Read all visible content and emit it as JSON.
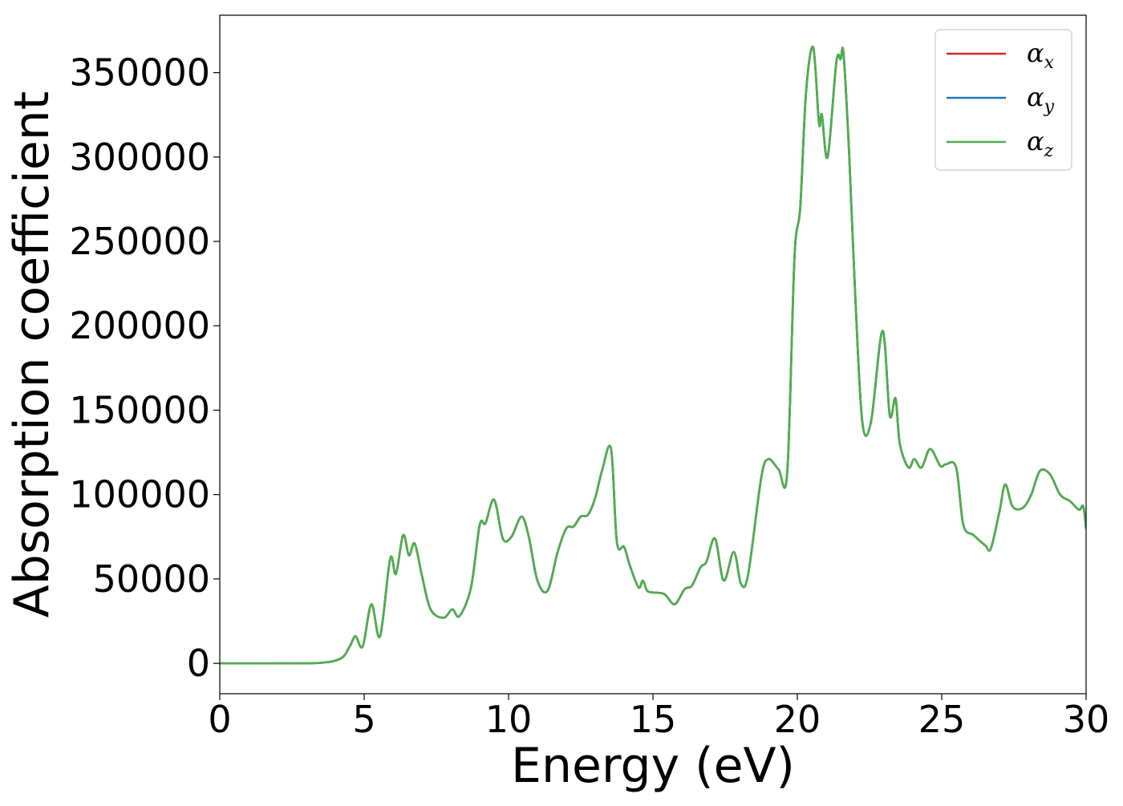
{
  "chart_data": {
    "type": "line",
    "title": "",
    "xlabel": "Energy (eV)",
    "ylabel": "Absorption coefficient",
    "xlim": [
      0,
      30
    ],
    "ylim": [
      -18000,
      384000
    ],
    "xticks": [
      0,
      5,
      10,
      15,
      20,
      25,
      30
    ],
    "yticks": [
      0,
      50000,
      100000,
      150000,
      200000,
      250000,
      300000,
      350000
    ],
    "grid": false,
    "legend_position": "top-right",
    "series": [
      {
        "name": "α_x",
        "legend_base": "α",
        "legend_sub": "x",
        "color": "#d62728",
        "x": [
          0,
          2,
          3.5,
          4.2,
          4.5,
          4.7,
          4.95,
          5.25,
          5.55,
          5.9,
          6.1,
          6.35,
          6.55,
          6.75,
          7.0,
          7.3,
          7.75,
          8.05,
          8.3,
          8.7,
          9.0,
          9.2,
          9.5,
          9.8,
          10.1,
          10.45,
          10.7,
          11.0,
          11.35,
          11.7,
          12.0,
          12.25,
          12.5,
          12.75,
          13.0,
          13.25,
          13.55,
          13.75,
          14.0,
          14.2,
          14.5,
          14.65,
          14.8,
          15.0,
          15.4,
          15.75,
          16.1,
          16.35,
          16.65,
          16.85,
          17.15,
          17.45,
          17.8,
          18.05,
          18.3,
          18.75,
          19.0,
          19.35,
          19.65,
          19.9,
          20.1,
          20.3,
          20.55,
          20.75,
          20.85,
          21.05,
          21.35,
          21.5,
          21.6,
          21.8,
          22.0,
          22.25,
          22.55,
          22.95,
          23.2,
          23.4,
          23.55,
          23.85,
          24.05,
          24.3,
          24.6,
          24.95,
          25.15,
          25.5,
          25.75,
          26.1,
          26.5,
          26.7,
          27.0,
          27.2,
          27.45,
          27.8,
          28.1,
          28.4,
          28.75,
          29.1,
          29.45,
          29.75,
          29.9,
          30.0
        ],
        "y": [
          0,
          0,
          300,
          3000,
          10000,
          16000,
          10000,
          35000,
          16000,
          62000,
          53000,
          76000,
          64000,
          71000,
          52000,
          32000,
          27000,
          32000,
          28000,
          45000,
          82000,
          83000,
          97000,
          74000,
          75000,
          87000,
          75000,
          49000,
          43000,
          66000,
          80000,
          81000,
          87000,
          88000,
          98000,
          115000,
          127000,
          72000,
          69000,
          58000,
          45000,
          49000,
          43000,
          42000,
          41000,
          35000,
          44000,
          46000,
          57000,
          60000,
          74000,
          49000,
          66000,
          47000,
          53000,
          110000,
          121000,
          115000,
          113000,
          240000,
          270000,
          338000,
          365000,
          320000,
          325000,
          300000,
          356000,
          358000,
          361000,
          300000,
          220000,
          143000,
          143000,
          197000,
          147000,
          157000,
          130000,
          116000,
          121000,
          116000,
          127000,
          117000,
          118000,
          116000,
          82000,
          76000,
          70000,
          68000,
          90000,
          106000,
          93000,
          92000,
          100000,
          114000,
          112000,
          100000,
          96000,
          91000,
          93000,
          80000
        ]
      },
      {
        "name": "α_y",
        "legend_base": "α",
        "legend_sub": "y",
        "color": "#1f77b4",
        "x": [
          0,
          2,
          3.5,
          4.2,
          4.5,
          4.7,
          4.95,
          5.25,
          5.55,
          5.9,
          6.1,
          6.35,
          6.55,
          6.75,
          7.0,
          7.3,
          7.75,
          8.05,
          8.3,
          8.7,
          9.0,
          9.2,
          9.5,
          9.8,
          10.1,
          10.45,
          10.7,
          11.0,
          11.35,
          11.7,
          12.0,
          12.25,
          12.5,
          12.75,
          13.0,
          13.25,
          13.55,
          13.75,
          14.0,
          14.2,
          14.5,
          14.65,
          14.8,
          15.0,
          15.4,
          15.75,
          16.1,
          16.35,
          16.65,
          16.85,
          17.15,
          17.45,
          17.8,
          18.05,
          18.3,
          18.75,
          19.0,
          19.35,
          19.65,
          19.9,
          20.1,
          20.3,
          20.55,
          20.75,
          20.85,
          21.05,
          21.35,
          21.5,
          21.6,
          21.8,
          22.0,
          22.25,
          22.55,
          22.95,
          23.2,
          23.4,
          23.55,
          23.85,
          24.05,
          24.3,
          24.6,
          24.95,
          25.15,
          25.5,
          25.75,
          26.1,
          26.5,
          26.7,
          27.0,
          27.2,
          27.45,
          27.8,
          28.1,
          28.4,
          28.75,
          29.1,
          29.45,
          29.75,
          29.9,
          30.0
        ],
        "y": [
          0,
          0,
          300,
          3000,
          10000,
          16000,
          10000,
          35000,
          16000,
          62000,
          53000,
          76000,
          64000,
          71000,
          52000,
          32000,
          27000,
          32000,
          28000,
          45000,
          82000,
          83000,
          97000,
          74000,
          75000,
          87000,
          75000,
          49000,
          43000,
          66000,
          80000,
          81000,
          87000,
          88000,
          98000,
          115000,
          127000,
          72000,
          69000,
          58000,
          45000,
          49000,
          43000,
          42000,
          41000,
          35000,
          44000,
          46000,
          57000,
          60000,
          74000,
          49000,
          66000,
          47000,
          53000,
          110000,
          121000,
          115000,
          113000,
          240000,
          270000,
          338000,
          365000,
          320000,
          325000,
          300000,
          356000,
          358000,
          361000,
          300000,
          220000,
          143000,
          143000,
          197000,
          147000,
          157000,
          130000,
          116000,
          121000,
          116000,
          127000,
          117000,
          118000,
          116000,
          82000,
          76000,
          70000,
          68000,
          90000,
          106000,
          93000,
          92000,
          100000,
          114000,
          112000,
          100000,
          96000,
          91000,
          93000,
          80000
        ]
      },
      {
        "name": "α_z",
        "legend_base": "α",
        "legend_sub": "z",
        "color": "#4daf4a",
        "x": [
          0,
          2,
          3.5,
          4.2,
          4.5,
          4.7,
          4.95,
          5.25,
          5.55,
          5.9,
          6.1,
          6.35,
          6.55,
          6.75,
          7.0,
          7.3,
          7.75,
          8.05,
          8.3,
          8.7,
          9.0,
          9.2,
          9.5,
          9.8,
          10.1,
          10.45,
          10.7,
          11.0,
          11.35,
          11.7,
          12.0,
          12.25,
          12.5,
          12.75,
          13.0,
          13.25,
          13.55,
          13.75,
          14.0,
          14.2,
          14.5,
          14.65,
          14.8,
          15.0,
          15.4,
          15.75,
          16.1,
          16.35,
          16.65,
          16.85,
          17.15,
          17.45,
          17.8,
          18.05,
          18.3,
          18.75,
          19.0,
          19.35,
          19.65,
          19.9,
          20.1,
          20.3,
          20.55,
          20.75,
          20.85,
          21.05,
          21.35,
          21.5,
          21.6,
          21.8,
          22.0,
          22.25,
          22.55,
          22.95,
          23.2,
          23.4,
          23.55,
          23.85,
          24.05,
          24.3,
          24.6,
          24.95,
          25.15,
          25.5,
          25.75,
          26.1,
          26.5,
          26.7,
          27.0,
          27.2,
          27.45,
          27.8,
          28.1,
          28.4,
          28.75,
          29.1,
          29.45,
          29.75,
          29.9,
          30.0
        ],
        "y": [
          0,
          0,
          300,
          3000,
          10000,
          16000,
          10000,
          35000,
          16000,
          62000,
          53000,
          76000,
          64000,
          71000,
          52000,
          32000,
          27000,
          32000,
          28000,
          45000,
          82000,
          83000,
          97000,
          74000,
          75000,
          87000,
          75000,
          49000,
          43000,
          66000,
          80000,
          81000,
          87000,
          88000,
          98000,
          115000,
          127000,
          72000,
          69000,
          58000,
          45000,
          49000,
          43000,
          42000,
          41000,
          35000,
          44000,
          46000,
          57000,
          60000,
          74000,
          49000,
          66000,
          47000,
          53000,
          110000,
          121000,
          115000,
          113000,
          240000,
          270000,
          338000,
          365000,
          320000,
          325000,
          300000,
          356000,
          358000,
          361000,
          300000,
          220000,
          143000,
          143000,
          197000,
          147000,
          157000,
          130000,
          116000,
          121000,
          116000,
          127000,
          117000,
          118000,
          116000,
          82000,
          76000,
          70000,
          68000,
          90000,
          106000,
          93000,
          92000,
          100000,
          114000,
          112000,
          100000,
          96000,
          91000,
          93000,
          80000
        ]
      }
    ]
  }
}
